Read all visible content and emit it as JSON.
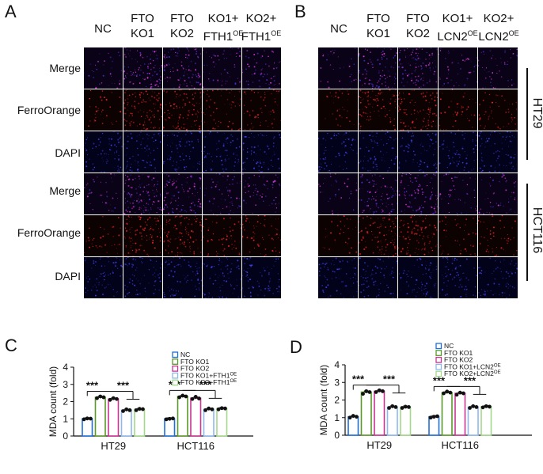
{
  "panel_a": {
    "letter": "A",
    "columns": [
      {
        "line1": "NC",
        "line2": "",
        "sup": ""
      },
      {
        "line1": "FTO",
        "line2": "KO1",
        "sup": ""
      },
      {
        "line1": "FTO",
        "line2": "KO2",
        "sup": ""
      },
      {
        "line1": "KO1+",
        "line2": "FTH1",
        "sup": "OE"
      },
      {
        "line1": "KO2+",
        "line2": "FTH1",
        "sup": "OE"
      }
    ],
    "rows": [
      "Merge",
      "FerroOrange",
      "DAPI",
      "Merge",
      "FerroOrange",
      "DAPI"
    ]
  },
  "panel_b": {
    "letter": "B",
    "columns": [
      {
        "line1": "NC",
        "line2": "",
        "sup": ""
      },
      {
        "line1": "FTO",
        "line2": "KO1",
        "sup": ""
      },
      {
        "line1": "FTO",
        "line2": "KO2",
        "sup": ""
      },
      {
        "line1": "KO1+",
        "line2": "LCN2",
        "sup": "OE"
      },
      {
        "line1": "KO2+",
        "line2": "LCN2",
        "sup": "OE"
      }
    ],
    "groups": [
      "HT29",
      "HCT116"
    ]
  },
  "chart_data": [
    {
      "panel": "C",
      "type": "bar",
      "title": "",
      "xlabel": "",
      "ylabel": "MDA count (fold)",
      "ylim": [
        0,
        4
      ],
      "yticks": [
        0,
        1,
        2,
        3,
        4
      ],
      "categories": [
        "HT29",
        "HCT116"
      ],
      "series": [
        {
          "name": "NC",
          "sup": "",
          "color": "#1f6fd6",
          "values": [
            1.0,
            1.0
          ]
        },
        {
          "name": "FTO KO1",
          "sup": "",
          "color": "#5a9a2a",
          "values": [
            2.25,
            2.3
          ]
        },
        {
          "name": "FTO KO2",
          "sup": "",
          "color": "#c8368f",
          "values": [
            2.15,
            2.2
          ]
        },
        {
          "name": "FTO KO1+FTH1",
          "sup": "OE",
          "color": "#8fb8ee",
          "values": [
            1.5,
            1.55
          ]
        },
        {
          "name": "FTO KO2+FTH1",
          "sup": "OE",
          "color": "#a3d98a",
          "values": [
            1.55,
            1.6
          ]
        }
      ],
      "points": [
        [
          [
            0.97,
            1.02,
            1.01
          ],
          [
            2.2,
            2.3,
            2.25
          ],
          [
            2.1,
            2.2,
            2.15
          ],
          [
            1.45,
            1.55,
            1.5
          ],
          [
            1.5,
            1.58,
            1.56
          ]
        ],
        [
          [
            0.97,
            1.0,
            1.02
          ],
          [
            2.25,
            2.35,
            2.3
          ],
          [
            2.15,
            2.28,
            2.18
          ],
          [
            1.5,
            1.6,
            1.55
          ],
          [
            1.55,
            1.62,
            1.6
          ]
        ]
      ],
      "significance": [
        "***",
        "***",
        "***",
        "***"
      ],
      "legend": "top-right"
    },
    {
      "panel": "D",
      "type": "bar",
      "title": "",
      "xlabel": "",
      "ylabel": "MDA count (fold)",
      "ylim": [
        0,
        4
      ],
      "yticks": [
        0,
        1,
        2,
        3,
        4
      ],
      "categories": [
        "HT29",
        "HCT116"
      ],
      "series": [
        {
          "name": "NC",
          "sup": "",
          "color": "#1f6fd6",
          "values": [
            1.05,
            1.05
          ]
        },
        {
          "name": "FTO KO1",
          "sup": "",
          "color": "#5a9a2a",
          "values": [
            2.45,
            2.42
          ]
        },
        {
          "name": "FTO KO2",
          "sup": "",
          "color": "#c8368f",
          "values": [
            2.5,
            2.38
          ]
        },
        {
          "name": "FTO KO1+LCN2",
          "sup": "OE",
          "color": "#8fb8ee",
          "values": [
            1.6,
            1.6
          ]
        },
        {
          "name": "FTO KO2+LCN2",
          "sup": "OE",
          "color": "#a3d98a",
          "values": [
            1.6,
            1.62
          ]
        }
      ],
      "points": [
        [
          [
            1.0,
            1.1,
            1.05
          ],
          [
            2.35,
            2.5,
            2.45
          ],
          [
            2.45,
            2.55,
            2.5
          ],
          [
            1.55,
            1.65,
            1.6
          ],
          [
            1.55,
            1.62,
            1.6
          ]
        ],
        [
          [
            1.0,
            1.05,
            1.08
          ],
          [
            2.38,
            2.48,
            2.42
          ],
          [
            2.3,
            2.42,
            2.38
          ],
          [
            1.55,
            1.65,
            1.6
          ],
          [
            1.58,
            1.65,
            1.62
          ]
        ]
      ],
      "significance": [
        "***",
        "***",
        "***",
        "***"
      ],
      "legend": "top-right"
    }
  ]
}
